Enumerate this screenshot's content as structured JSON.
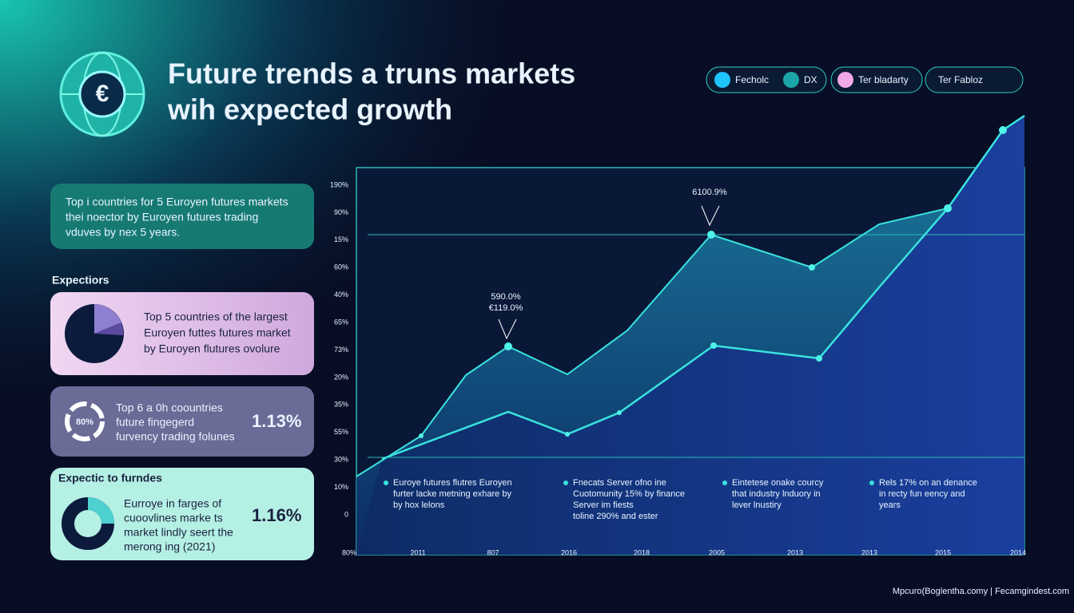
{
  "header": {
    "title_lines": [
      "Future trends a truns markets",
      "wih expected growth"
    ]
  },
  "nav": [
    "Fecholc",
    "DX",
    "Ter bladarty",
    "Ter Fabloz"
  ],
  "cards": [
    {
      "lines": [
        "Top i countries for 5 Euroyen futures markets",
        "thei noector by Euroyen futures trading",
        "vduves by nex 5 years."
      ]
    },
    {
      "lines": [
        "Top 5 countries of the largest",
        "Euroyen futtes futures market",
        "by Euroyen flutures ovolure"
      ]
    },
    {
      "badge": "80%",
      "lines": [
        "Top 6 a 0h coountries",
        "future fingegerd",
        "furvency trading folunes"
      ],
      "stat": "1.13%"
    },
    {
      "heading": "Expectic to furndes",
      "lines": [
        "Eurroye in farges of",
        "cuoovlines marke ts",
        "market lindly seert the",
        "merong ing (2021)"
      ],
      "stat": "1.16%"
    }
  ],
  "section_label": "Expectiors",
  "chart": {
    "y_labels": [
      "190%",
      "90%",
      "15%",
      "60%",
      "40%",
      "65%",
      "73%",
      "20%",
      "35%",
      "55%",
      "30%",
      "10%",
      "0"
    ],
    "x_labels": [
      "80%",
      "2011",
      "807",
      "2016",
      "2018",
      "2005",
      "2013",
      "2013",
      "2015",
      "2014"
    ],
    "annotations": [
      {
        "lines": [
          "6100.9%"
        ]
      },
      {
        "lines": [
          "590.0%",
          "€119.0%"
        ]
      }
    ],
    "notes": [
      {
        "lines": [
          "Euroye futures flutres Euroyen",
          "furter lacke metning exhare by",
          "by hox lelons"
        ]
      },
      {
        "lines": [
          "Fnecats Server ofno ine",
          "Cuotomunity 15% by finance",
          "Server im fiests",
          "toline 290% and ester"
        ]
      },
      {
        "lines": [
          "Eintetese onake courcy",
          "that industry  lnduory in",
          "lever lnustiry"
        ]
      },
      {
        "lines": [
          "Rels 17% on an denance",
          "in recty fun eency and",
          "years"
        ]
      }
    ]
  },
  "footer": "Mpcuro(Boglentha.comy  |  Fecamgindest.com"
}
